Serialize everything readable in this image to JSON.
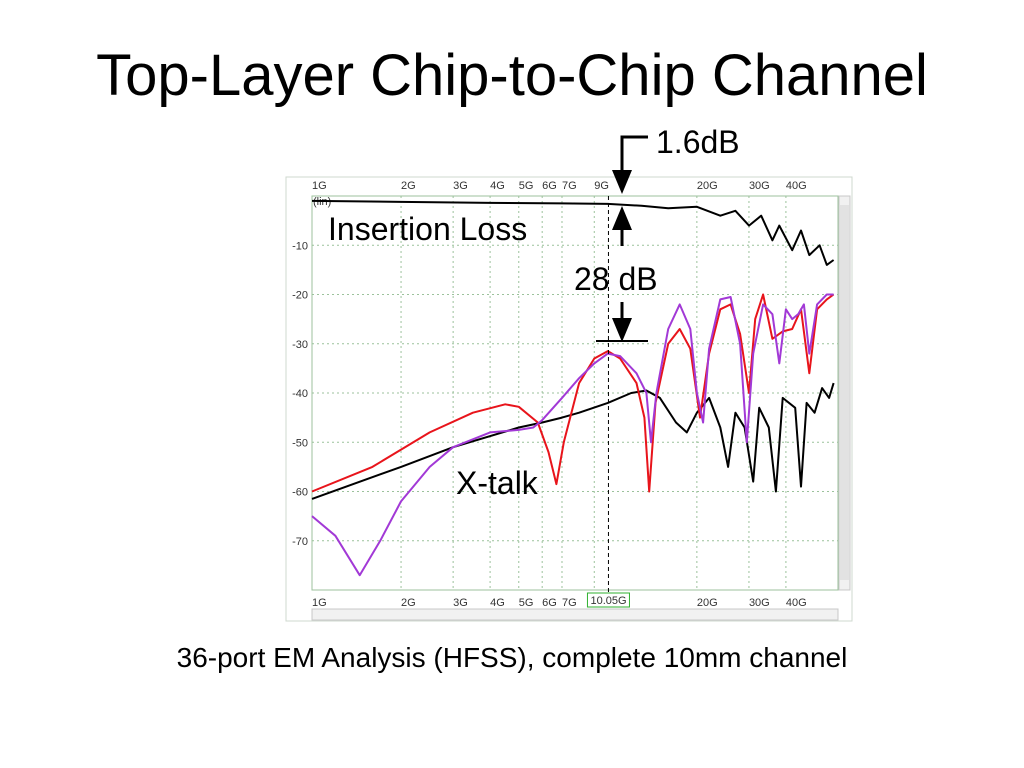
{
  "title": "Top-Layer Chip-to-Chip Channel",
  "caption": "36-port EM Analysis (HFSS),  complete 10mm channel",
  "annotations": {
    "insertion_loss_label": "Insertion Loss",
    "xtalk_label": "X-talk",
    "il_delta": "1.6dB",
    "margin": "28 dB"
  },
  "chart_data": {
    "type": "line",
    "xscale": "log",
    "xlim": [
      1,
      60
    ],
    "ylim": [
      -80,
      0
    ],
    "grid": true,
    "legend": "none",
    "x_ticks": [
      {
        "v": 1,
        "label": "1G"
      },
      {
        "v": 2,
        "label": "2G"
      },
      {
        "v": 3,
        "label": "3G"
      },
      {
        "v": 4,
        "label": "4G"
      },
      {
        "v": 5,
        "label": "5G"
      },
      {
        "v": 6,
        "label": "6G"
      },
      {
        "v": 7,
        "label": "7G"
      },
      {
        "v": 9,
        "label": "9G"
      },
      {
        "v": 20,
        "label": "20G"
      },
      {
        "v": 30,
        "label": "30G"
      },
      {
        "v": 40,
        "label": "40G"
      }
    ],
    "y_ticks": [
      {
        "v": -10,
        "label": "-10"
      },
      {
        "v": -20,
        "label": "-20"
      },
      {
        "v": -30,
        "label": "-30"
      },
      {
        "v": -40,
        "label": "-40"
      },
      {
        "v": -50,
        "label": "-50"
      },
      {
        "v": -60,
        "label": "-60"
      },
      {
        "v": -70,
        "label": "-70"
      }
    ],
    "y_unit_label": "(lin)",
    "marker": {
      "x": 10.05,
      "label": "10.05G"
    },
    "series": [
      {
        "color": "#000000",
        "points": [
          [
            1,
            -1
          ],
          [
            2,
            -1.2
          ],
          [
            4,
            -1.4
          ],
          [
            7,
            -1.5
          ],
          [
            10,
            -1.6
          ],
          [
            13,
            -2
          ],
          [
            16,
            -2.5
          ],
          [
            20,
            -2.2
          ],
          [
            24,
            -4
          ],
          [
            27,
            -3
          ],
          [
            30,
            -6
          ],
          [
            33,
            -4
          ],
          [
            36,
            -9
          ],
          [
            38,
            -6
          ],
          [
            42,
            -11
          ],
          [
            45,
            -7
          ],
          [
            48,
            -12
          ],
          [
            52,
            -10
          ],
          [
            55,
            -14
          ],
          [
            58,
            -13
          ]
        ]
      },
      {
        "color": "#000000",
        "points": [
          [
            1,
            -61.5
          ],
          [
            2,
            -55
          ],
          [
            3,
            -51
          ],
          [
            5,
            -47
          ],
          [
            6,
            -46
          ],
          [
            7,
            -45
          ],
          [
            8,
            -44
          ],
          [
            10,
            -42
          ],
          [
            12,
            -40
          ],
          [
            13.5,
            -39.5
          ],
          [
            15,
            -41
          ],
          [
            17,
            -46
          ],
          [
            18.5,
            -48
          ],
          [
            20,
            -44
          ],
          [
            22,
            -41
          ],
          [
            24,
            -47
          ],
          [
            25.5,
            -55
          ],
          [
            27,
            -44
          ],
          [
            29,
            -47
          ],
          [
            31,
            -58
          ],
          [
            32.5,
            -43
          ],
          [
            35,
            -47
          ],
          [
            37,
            -60
          ],
          [
            39,
            -41
          ],
          [
            43,
            -43
          ],
          [
            45,
            -59
          ],
          [
            47,
            -42
          ],
          [
            50,
            -44
          ],
          [
            53,
            -39
          ],
          [
            56,
            -41
          ],
          [
            58,
            -38
          ]
        ]
      },
      {
        "color": "#e8141b",
        "points": [
          [
            1,
            -60
          ],
          [
            1.6,
            -55
          ],
          [
            2.5,
            -48
          ],
          [
            3.5,
            -44
          ],
          [
            4.5,
            -42.3
          ],
          [
            5,
            -42.8
          ],
          [
            5.8,
            -46
          ],
          [
            6.3,
            -52
          ],
          [
            6.7,
            -58.5
          ],
          [
            7.1,
            -50
          ],
          [
            8,
            -38
          ],
          [
            9,
            -33
          ],
          [
            10,
            -31.5
          ],
          [
            11,
            -33
          ],
          [
            12.5,
            -38
          ],
          [
            13.3,
            -45
          ],
          [
            13.8,
            -60
          ],
          [
            14.5,
            -42
          ],
          [
            16,
            -30
          ],
          [
            17.5,
            -27
          ],
          [
            19,
            -31
          ],
          [
            20.5,
            -45
          ],
          [
            22,
            -32
          ],
          [
            24,
            -23
          ],
          [
            26,
            -22
          ],
          [
            28,
            -28
          ],
          [
            30,
            -40
          ],
          [
            31.5,
            -25
          ],
          [
            33.5,
            -20
          ],
          [
            36,
            -29
          ],
          [
            39,
            -27.5
          ],
          [
            42,
            -27
          ],
          [
            45,
            -23
          ],
          [
            48,
            -36
          ],
          [
            51,
            -23
          ],
          [
            55,
            -21
          ],
          [
            58,
            -20
          ]
        ]
      },
      {
        "color": "#a239d6",
        "points": [
          [
            1,
            -65
          ],
          [
            1.2,
            -69
          ],
          [
            1.45,
            -77
          ],
          [
            1.7,
            -70
          ],
          [
            2,
            -62
          ],
          [
            2.5,
            -55
          ],
          [
            3,
            -51
          ],
          [
            4,
            -48
          ],
          [
            5,
            -47.5
          ],
          [
            5.6,
            -47
          ],
          [
            6,
            -45.5
          ],
          [
            7,
            -41
          ],
          [
            8,
            -37
          ],
          [
            9,
            -34
          ],
          [
            10,
            -32
          ],
          [
            11,
            -32.5
          ],
          [
            12.5,
            -36
          ],
          [
            13.5,
            -40
          ],
          [
            14,
            -50
          ],
          [
            14.6,
            -40
          ],
          [
            16,
            -27
          ],
          [
            17.5,
            -22
          ],
          [
            19,
            -27
          ],
          [
            20,
            -40
          ],
          [
            21,
            -46
          ],
          [
            22,
            -31
          ],
          [
            24,
            -21
          ],
          [
            26,
            -20.5
          ],
          [
            28,
            -30
          ],
          [
            29.5,
            -50
          ],
          [
            31,
            -32
          ],
          [
            33.5,
            -22
          ],
          [
            36,
            -24
          ],
          [
            38,
            -34
          ],
          [
            40,
            -23
          ],
          [
            42,
            -25
          ],
          [
            44,
            -24
          ],
          [
            46,
            -22
          ],
          [
            48,
            -32
          ],
          [
            51,
            -22
          ],
          [
            55,
            -20
          ],
          [
            58,
            -20
          ]
        ]
      }
    ]
  }
}
